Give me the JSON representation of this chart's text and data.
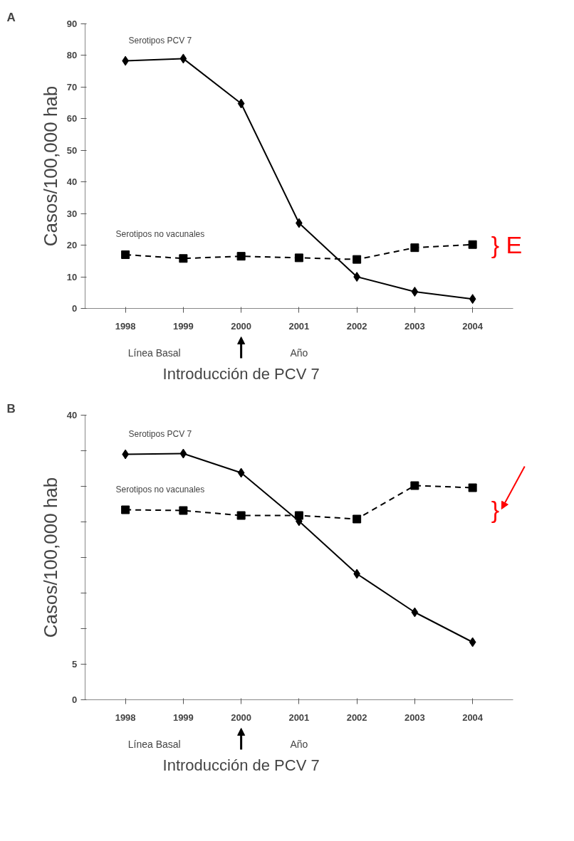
{
  "chart_data": [
    {
      "type": "line",
      "categories": [
        "1998",
        "1999",
        "2000",
        "2001",
        "2002",
        "2003",
        "2004"
      ],
      "ylabel": "Casos/100,000 hab",
      "xlabel": "Año",
      "ylim": [
        0,
        90
      ],
      "yticks": [
        0,
        10,
        20,
        30,
        40,
        50,
        60,
        70,
        80,
        90
      ],
      "grid": false,
      "series": [
        {
          "name": "Serotipos PCV 7",
          "color": "#000000",
          "marker": "diamond",
          "line_style": "solid",
          "values": [
            78.3,
            79,
            64.8,
            27,
            10,
            5.3,
            3
          ]
        },
        {
          "name": "Serotipos no vacunales",
          "color": "#000000",
          "marker": "square",
          "line_style": "dashed",
          "values": [
            17,
            15.8,
            16.5,
            16,
            15.5,
            19.2,
            20.2
          ]
        }
      ],
      "annotations": [
        "A",
        "Línea Basal",
        "Introducción de PCV 7",
        {
          "text": "} E",
          "x": "2004",
          "y": 20.2
        }
      ]
    },
    {
      "type": "line",
      "categories": [
        "1998",
        "1999",
        "2000",
        "2001",
        "2002",
        "2003",
        "2004"
      ],
      "ylabel": "Casos/100,000 hab",
      "xlabel": "Año",
      "ylim": [
        0,
        40
      ],
      "yticks": [
        0,
        5,
        {
          "value": 10,
          "label": null
        },
        {
          "value": 15,
          "label": null
        },
        {
          "value": 20,
          "label": null
        },
        {
          "value": 25,
          "label": null
        },
        {
          "value": 30,
          "label": null
        },
        {
          "value": 35,
          "label": null
        },
        40
      ],
      "grid": false,
      "series": [
        {
          "name": "Serotipos PCV 7",
          "color": "#000000",
          "marker": "diamond",
          "line_style": "solid",
          "values": [
            34.5,
            34.6,
            31.9,
            25.1,
            17.7,
            12.3,
            8.1
          ]
        },
        {
          "name": "Serotipos no vacunales",
          "color": "#000000",
          "marker": "square",
          "line_style": "dashed",
          "values": [
            26.7,
            26.6,
            25.9,
            25.9,
            25.4,
            30.1,
            29.8
          ]
        }
      ],
      "annotations": [
        "B",
        "Línea Basal",
        "Introducción de PCV 7",
        "}"
      ]
    }
  ]
}
